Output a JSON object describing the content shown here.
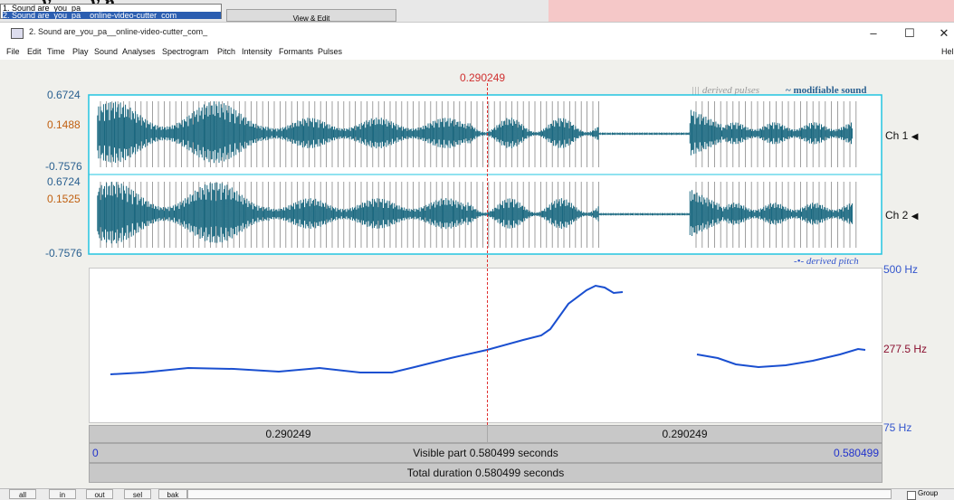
{
  "background_window": {
    "heading_fragment": "...y ... ...y p",
    "list_items": [
      "1. Sound are_you_pa",
      "2. Sound are_you_pa__online-video-cutter_com_"
    ],
    "button_label": "View & Edit"
  },
  "window": {
    "title": "2. Sound are_you_pa__online-video-cutter_com_",
    "minimize": "–",
    "maximize": "☐",
    "close": "✕"
  },
  "menu": [
    "File",
    "Edit",
    "Time",
    "Play",
    "Sound",
    "Analyses",
    "Spectrogram",
    "Pitch",
    "Intensity",
    "Formants",
    "Pulses"
  ],
  "menu_help": "Help",
  "cursor_time": "0.290249",
  "legend": {
    "derived_pulses": "||| derived pulses",
    "modifiable_sound": "~ modifiable sound",
    "derived_pitch": "-•- derived pitch"
  },
  "channels": [
    {
      "label": "Ch 1",
      "max": "0.6724",
      "value": "0.1488",
      "min": "-0.7576"
    },
    {
      "label": "Ch 2",
      "max": "0.6724",
      "value": "0.1525",
      "min": "-0.7576"
    }
  ],
  "pitch_axis": {
    "top": "500 Hz",
    "mid": "277.5 Hz",
    "bottom": "75 Hz"
  },
  "selection_bar": {
    "left": "0.290249",
    "right": "0.290249"
  },
  "visible_bar": {
    "start": "0",
    "label": "Visible part 0.580499 seconds",
    "end": "0.580499"
  },
  "total_bar": {
    "label": "Total duration 0.580499 seconds"
  },
  "bottom_buttons": [
    "all",
    "in",
    "out",
    "sel",
    "bak"
  ],
  "group_label": "Group",
  "colors": {
    "waveform": "#1a6880",
    "pitch": "#1a4fd0",
    "cursor": "#e03030",
    "frame": "#22c4e0"
  }
}
